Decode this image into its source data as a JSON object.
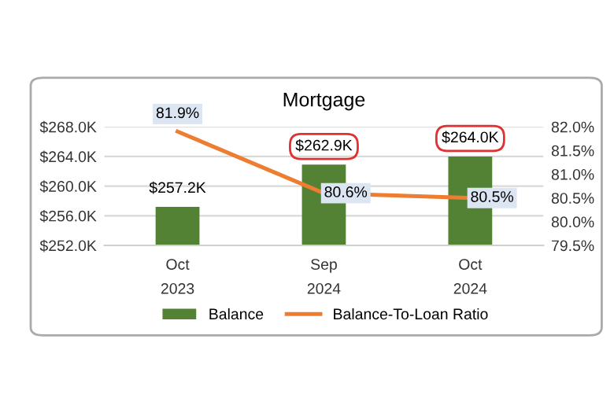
{
  "chart_data": {
    "type": "bar",
    "title": "Mortgage",
    "categories": [
      "Oct\n2023",
      "Sep\n2024",
      "Oct\n2024"
    ],
    "series": [
      {
        "name": "Balance",
        "color": "#548235",
        "values": [
          257.2,
          262.9,
          264.0
        ],
        "value_labels": [
          "$257.2K",
          "$262.9K",
          "$264.0K"
        ]
      },
      {
        "name": "Balance-To-Loan Ratio",
        "type": "line",
        "axis": "y2",
        "color": "#ed7d31",
        "values": [
          81.9,
          80.6,
          80.5
        ],
        "value_labels": [
          "81.9%",
          "80.6%",
          "80.5%"
        ]
      }
    ],
    "ylim": [
      252,
      268
    ],
    "yticks": [
      {
        "value": 252,
        "label": "$252.0K"
      },
      {
        "value": 256,
        "label": "$256.0K"
      },
      {
        "value": 260,
        "label": "$260.0K"
      },
      {
        "value": 264,
        "label": "$264.0K"
      },
      {
        "value": 268,
        "label": "$268.0K"
      }
    ],
    "y2lim": [
      79.5,
      82.0
    ],
    "y2ticks": [
      {
        "value": 79.5,
        "label": "79.5%"
      },
      {
        "value": 80.0,
        "label": "80.0%"
      },
      {
        "value": 80.5,
        "label": "80.5%"
      },
      {
        "value": 81.0,
        "label": "81.0%"
      },
      {
        "value": 81.5,
        "label": "81.5%"
      },
      {
        "value": 82.0,
        "label": "82.0%"
      }
    ],
    "grid": "y",
    "legend": "bottom",
    "marker": "none"
  }
}
